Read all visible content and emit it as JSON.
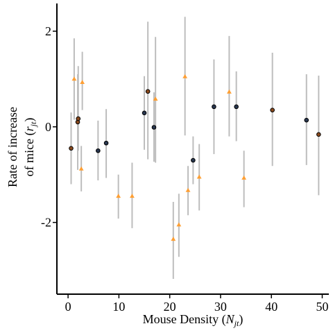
{
  "chart_data": {
    "type": "scatter",
    "title": "",
    "xlabel": {
      "text": "Mouse Density (",
      "var": "N",
      "sub": "jt",
      "close": ")"
    },
    "ylabel": {
      "line1": "Rate of increase",
      "line2_text": "of mice (",
      "line2_var": "r",
      "line2_sub": "jt",
      "line2_close": ")"
    },
    "xlim": [
      -2.2,
      51.3
    ],
    "ylim": [
      -3.5,
      2.58
    ],
    "xticks": [
      0,
      10,
      20,
      30,
      40,
      50
    ],
    "xtick_labels": [
      "0",
      "10",
      "20",
      "30",
      "40",
      "50"
    ],
    "yticks": [
      -2,
      0,
      2
    ],
    "ytick_labels": [
      "-2",
      "0",
      "2"
    ],
    "grid": false,
    "legend": "none",
    "colors": {
      "errorbar": "#bdbdbd",
      "triangle": "#ff9f33",
      "circle_fill": "#29374f",
      "circle_fill_alt": "#8a4a1e",
      "circle_edge": "#000000"
    },
    "series": [
      {
        "marker": "triangle",
        "color": "#ff9f33",
        "points": [
          {
            "x": 1.2,
            "y": 1.0,
            "low": 0.15,
            "high": 1.85
          },
          {
            "x": 2.8,
            "y": 0.93,
            "low": 0.35,
            "high": 1.57
          },
          {
            "x": 2.6,
            "y": -0.88,
            "low": -1.35,
            "high": -0.4
          },
          {
            "x": 9.9,
            "y": -1.45,
            "low": -1.92,
            "high": -1.0
          },
          {
            "x": 12.6,
            "y": -1.45,
            "low": -2.12,
            "high": -0.75
          },
          {
            "x": 17.2,
            "y": 0.58,
            "low": -0.75,
            "high": 1.88
          },
          {
            "x": 20.7,
            "y": -2.35,
            "low": -3.18,
            "high": -1.57
          },
          {
            "x": 21.8,
            "y": -2.05,
            "low": -2.72,
            "high": -1.4
          },
          {
            "x": 23.0,
            "y": 1.05,
            "low": -0.18,
            "high": 2.3
          },
          {
            "x": 23.6,
            "y": -1.33,
            "low": -1.85,
            "high": -0.82
          },
          {
            "x": 25.8,
            "y": -1.05,
            "low": -1.75,
            "high": -0.36
          },
          {
            "x": 31.7,
            "y": 0.73,
            "low": -0.2,
            "high": 1.9
          },
          {
            "x": 34.6,
            "y": -1.07,
            "low": -1.68,
            "high": -0.5
          }
        ]
      },
      {
        "marker": "circle",
        "color": "#29374f",
        "points": [
          {
            "x": 0.6,
            "y": -0.45,
            "low": -1.2,
            "high": 0.3,
            "fill": "#8a4a1e"
          },
          {
            "x": 1.9,
            "y": 0.1,
            "low": -0.9,
            "high": 1.1,
            "fill": "#8a4a1e"
          },
          {
            "x": 2.0,
            "y": 0.17,
            "low": -0.5,
            "high": 1.27,
            "fill": "#8a4a1e"
          },
          {
            "x": 5.9,
            "y": -0.5,
            "low": -1.12,
            "high": 0.13
          },
          {
            "x": 7.5,
            "y": -0.34,
            "low": -1.07,
            "high": 0.37
          },
          {
            "x": 15.0,
            "y": 0.29,
            "low": -0.48,
            "high": 1.06
          },
          {
            "x": 15.7,
            "y": 0.74,
            "low": -0.68,
            "high": 2.2,
            "fill": "#8a4a1e"
          },
          {
            "x": 16.9,
            "y": -0.01,
            "low": -0.73,
            "high": 0.72
          },
          {
            "x": 24.6,
            "y": -0.7,
            "low": -1.2,
            "high": -0.2
          },
          {
            "x": 28.7,
            "y": 0.42,
            "low": -0.57,
            "high": 1.41
          },
          {
            "x": 33.1,
            "y": 0.42,
            "low": -0.3,
            "high": 1.16
          },
          {
            "x": 40.2,
            "y": 0.35,
            "low": -0.82,
            "high": 1.55,
            "fill": "#8a4a1e"
          },
          {
            "x": 46.9,
            "y": 0.14,
            "low": -0.8,
            "high": 1.1
          },
          {
            "x": 49.3,
            "y": -0.16,
            "low": -1.43,
            "high": 1.07,
            "fill": "#8a4a1e"
          }
        ]
      }
    ]
  }
}
